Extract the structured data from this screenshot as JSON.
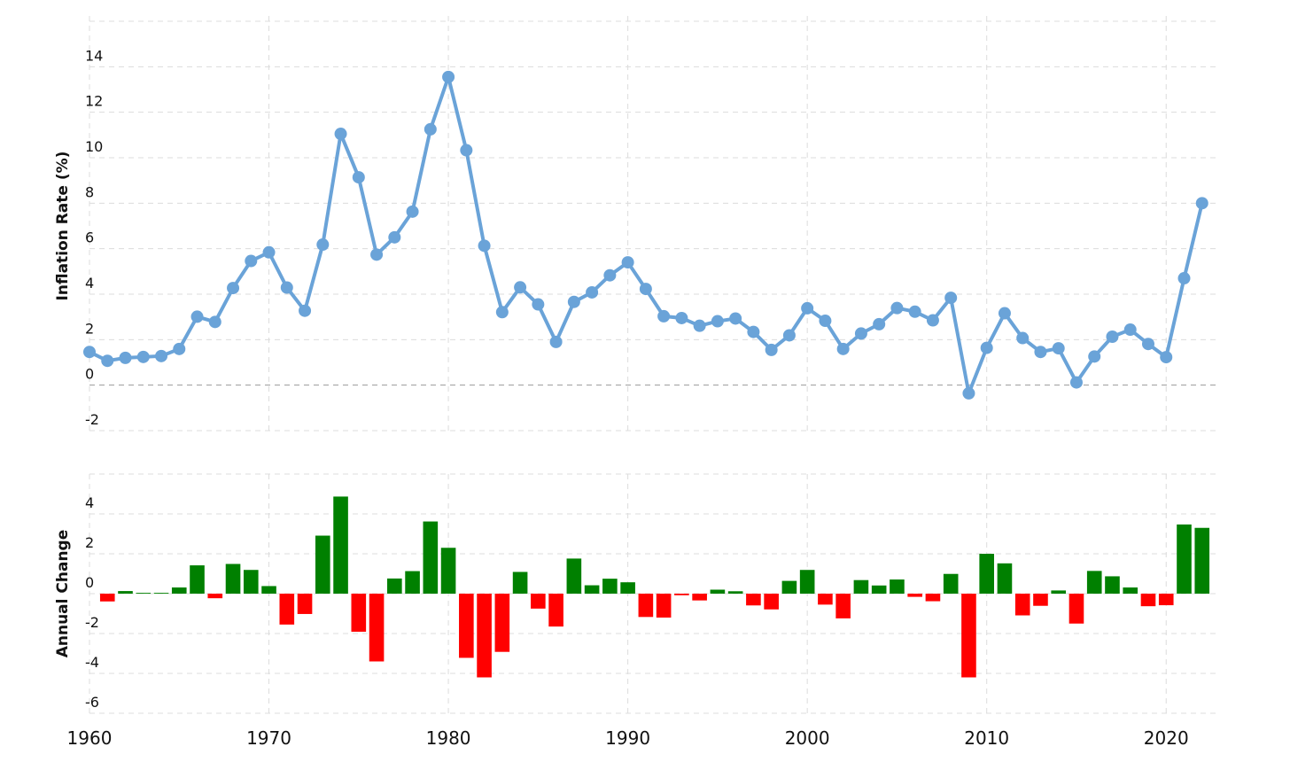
{
  "chart_data": [
    {
      "type": "line",
      "y_label": "Inflation Rate (%)",
      "color": "#6aa3d8",
      "x": [
        1960,
        1961,
        1962,
        1963,
        1964,
        1965,
        1966,
        1967,
        1968,
        1969,
        1970,
        1971,
        1972,
        1973,
        1974,
        1975,
        1976,
        1977,
        1978,
        1979,
        1980,
        1981,
        1982,
        1983,
        1984,
        1985,
        1986,
        1987,
        1988,
        1989,
        1990,
        1991,
        1992,
        1993,
        1994,
        1995,
        1996,
        1997,
        1998,
        1999,
        2000,
        2001,
        2002,
        2003,
        2004,
        2005,
        2006,
        2007,
        2008,
        2009,
        2010,
        2011,
        2012,
        2013,
        2014,
        2015,
        2016,
        2017,
        2018,
        2019,
        2020,
        2021,
        2022
      ],
      "values": [
        1.46,
        1.07,
        1.2,
        1.24,
        1.28,
        1.59,
        3.01,
        2.78,
        4.27,
        5.46,
        5.84,
        4.29,
        3.27,
        6.18,
        11.05,
        9.14,
        5.74,
        6.5,
        7.63,
        11.25,
        13.55,
        10.33,
        6.13,
        3.21,
        4.3,
        3.55,
        1.9,
        3.66,
        4.08,
        4.83,
        5.4,
        4.23,
        3.03,
        2.95,
        2.61,
        2.81,
        2.93,
        2.34,
        1.55,
        2.19,
        3.38,
        2.83,
        1.59,
        2.27,
        2.68,
        3.39,
        3.23,
        2.85,
        3.84,
        -0.36,
        1.64,
        3.16,
        2.07,
        1.46,
        1.62,
        0.12,
        1.26,
        2.13,
        2.44,
        1.81,
        1.23,
        4.7,
        8.0
      ],
      "xlim": [
        1960,
        2023
      ],
      "xticks": [
        1960,
        1970,
        1980,
        1990,
        2000,
        2010,
        2020
      ],
      "ylim": [
        -2,
        16
      ],
      "yticks": [
        -2,
        0,
        2,
        4,
        6,
        8,
        10,
        12,
        14
      ],
      "grid": true
    },
    {
      "type": "bar",
      "y_label": "Annual Change",
      "positive_color": "#008000",
      "negative_color": "#ff0000",
      "x": [
        1961,
        1962,
        1963,
        1964,
        1965,
        1966,
        1967,
        1968,
        1969,
        1970,
        1971,
        1972,
        1973,
        1974,
        1975,
        1976,
        1977,
        1978,
        1979,
        1980,
        1981,
        1982,
        1983,
        1984,
        1985,
        1986,
        1987,
        1988,
        1989,
        1990,
        1991,
        1992,
        1993,
        1994,
        1995,
        1996,
        1997,
        1998,
        1999,
        2000,
        2001,
        2002,
        2003,
        2004,
        2005,
        2006,
        2007,
        2008,
        2009,
        2010,
        2011,
        2012,
        2013,
        2014,
        2015,
        2016,
        2017,
        2018,
        2019,
        2020,
        2021,
        2022
      ],
      "values": [
        -0.39,
        0.13,
        0.04,
        0.04,
        0.31,
        1.42,
        -0.23,
        1.49,
        1.19,
        0.38,
        -1.55,
        -1.02,
        2.91,
        4.87,
        -1.91,
        -3.4,
        0.76,
        1.13,
        3.62,
        2.3,
        -3.22,
        -4.2,
        -2.92,
        1.09,
        -0.75,
        -1.65,
        1.76,
        0.42,
        0.75,
        0.57,
        -1.17,
        -1.2,
        -0.08,
        -0.34,
        0.2,
        0.12,
        -0.59,
        -0.79,
        0.64,
        1.19,
        -0.55,
        -1.24,
        0.68,
        0.41,
        0.71,
        -0.16,
        -0.38,
        0.99,
        -4.2,
        2.0,
        1.52,
        -1.09,
        -0.61,
        0.16,
        -1.5,
        1.14,
        0.87,
        0.31,
        -0.63,
        -0.58,
        3.47,
        3.3
      ],
      "xlim": [
        1960,
        2023
      ],
      "xticks": [
        1960,
        1970,
        1980,
        1990,
        2000,
        2010,
        2020
      ],
      "ylim": [
        -6,
        6
      ],
      "yticks": [
        -6,
        -4,
        -2,
        0,
        2,
        4
      ],
      "grid": true
    }
  ]
}
